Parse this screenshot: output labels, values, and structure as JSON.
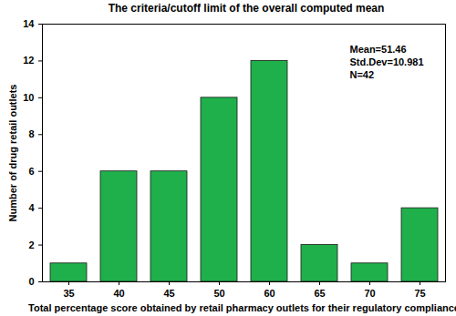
{
  "chart_data": {
    "type": "bar",
    "title": "The criteria/cutoff limit of the overall computed mean",
    "x_label": "Total percentage score obtained by retail pharmacy outlets for their regulatory compliance",
    "y_label": "Number of drug retail outlets",
    "categories": [
      35,
      40,
      45,
      50,
      60,
      65,
      70,
      75
    ],
    "values": [
      1,
      6,
      6,
      10,
      12,
      2,
      1,
      4
    ],
    "color": "#1fb04b",
    "ylim": [
      0,
      14
    ],
    "yticks": [
      0,
      2,
      4,
      6,
      8,
      10,
      12,
      14
    ],
    "grid": false,
    "annotations": [
      "Mean=51.46",
      "Std.Dev=10.981",
      "N=42"
    ]
  }
}
